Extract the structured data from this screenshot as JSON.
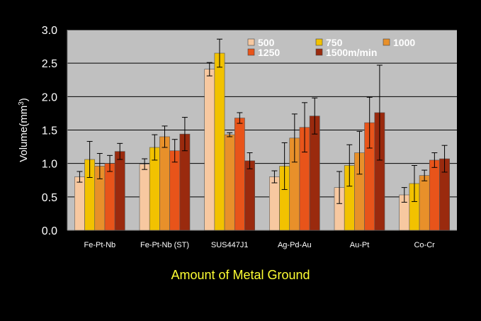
{
  "chart_data": {
    "type": "bar",
    "xlabel": "Amount of Metal Ground",
    "ylabel_main": "Volume(mm",
    "ylabel_sup": "3",
    "ylabel_end": ")",
    "ylim": [
      0,
      3.0
    ],
    "yticks": [
      "0.0",
      "0.5",
      "1.0",
      "1.5",
      "2.0",
      "2.5",
      "3.0"
    ],
    "grid": true,
    "legend_position": "top-right",
    "categories": [
      "Fe-Pt-Nb",
      "Fe-Pt-Nb (ST)",
      "SUS447J1",
      "Ag-Pd-Au",
      "Au-Pt",
      "Co-Cr"
    ],
    "series": [
      {
        "name": "500",
        "color": "#f7c8a0",
        "values": [
          0.8,
          0.99,
          2.41,
          0.8,
          0.64,
          0.53
        ],
        "errors": [
          0.08,
          0.08,
          0.1,
          0.09,
          0.24,
          0.11
        ]
      },
      {
        "name": "750",
        "color": "#f2c200",
        "values": [
          1.06,
          1.24,
          2.65,
          0.96,
          0.97,
          0.7
        ],
        "errors": [
          0.27,
          0.19,
          0.21,
          0.35,
          0.31,
          0.27
        ]
      },
      {
        "name": "1000",
        "color": "#e8902a",
        "values": [
          0.96,
          1.4,
          1.43,
          1.38,
          1.16,
          0.82
        ],
        "errors": [
          0.19,
          0.16,
          0.03,
          0.36,
          0.32,
          0.08
        ]
      },
      {
        "name": "1250",
        "color": "#e8541a",
        "values": [
          1.0,
          1.19,
          1.68,
          1.54,
          1.61,
          1.05
        ],
        "errors": [
          0.12,
          0.17,
          0.08,
          0.37,
          0.38,
          0.11
        ]
      },
      {
        "name": "1500m/min",
        "color": "#9a2a0e",
        "values": [
          1.18,
          1.44,
          1.04,
          1.71,
          1.76,
          1.07
        ],
        "errors": [
          0.12,
          0.25,
          0.12,
          0.27,
          0.71,
          0.2
        ]
      }
    ]
  }
}
